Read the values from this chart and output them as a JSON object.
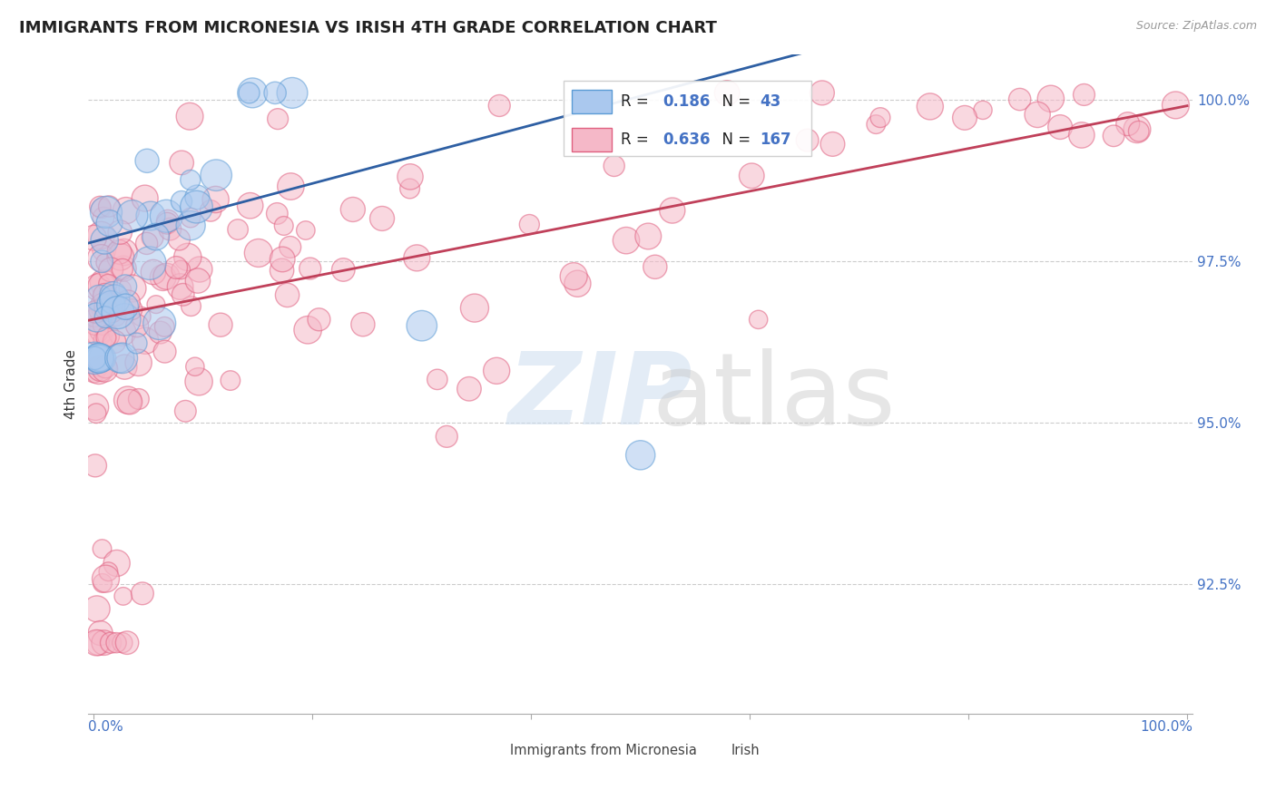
{
  "title": "IMMIGRANTS FROM MICRONESIA VS IRISH 4TH GRADE CORRELATION CHART",
  "source": "Source: ZipAtlas.com",
  "ylabel": "4th Grade",
  "micronesia_color": "#aac8ee",
  "micronesia_edge": "#5b9bd5",
  "irish_color": "#f5b8c8",
  "irish_edge": "#e06080",
  "micronesia_R": 0.186,
  "micronesia_N": 43,
  "irish_R": 0.636,
  "irish_N": 167,
  "legend_label_micronesia": "Immigrants from Micronesia",
  "legend_label_irish": "Irish",
  "background_color": "#ffffff",
  "grid_color": "#cccccc",
  "title_fontsize": 13,
  "axis_label_color": "#4472c4",
  "micronesia_line_color": "#2e5fa3",
  "irish_line_color": "#c0405a",
  "ytick_vals": [
    0.925,
    0.95,
    0.975,
    1.0
  ],
  "ytick_labels": [
    "92.5%",
    "95.0%",
    "97.5%",
    "100.0%"
  ],
  "ylim_low": 0.905,
  "ylim_high": 1.007,
  "xlim_low": -0.005,
  "xlim_high": 1.005
}
